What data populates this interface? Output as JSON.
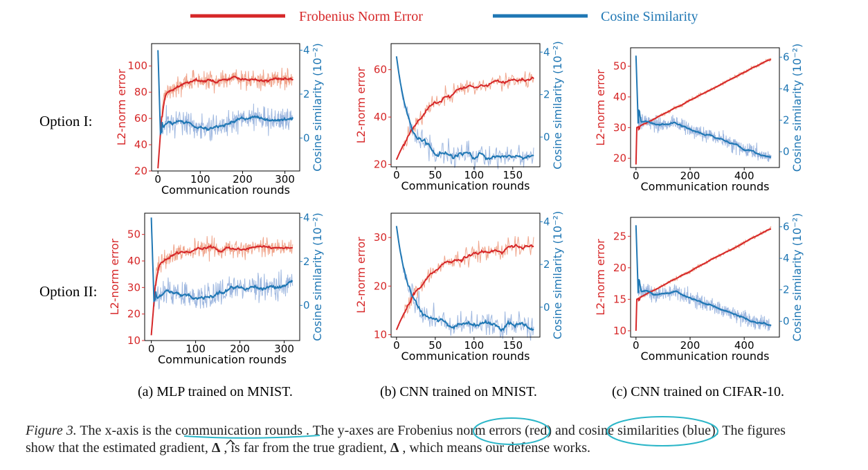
{
  "legend": {
    "frobenius": {
      "label": "Frobenius Norm Error",
      "color": "#d62728"
    },
    "cosine": {
      "label": "Cosine Similarity",
      "color": "#1f77b4"
    }
  },
  "row_labels": [
    "Option I:",
    "Option II:"
  ],
  "subcaptions": [
    "(a) MLP trained on MNIST.",
    "(b) CNN trained on MNIST.",
    "(c) CNN trained on CIFAR-10."
  ],
  "caption": {
    "figure_label": "Figure 3.",
    "part1": "The x-axis is the ",
    "u1": "communication rounds",
    "part2": ". The y-axes are Frobenius ",
    "u2": "norm errors",
    "part3": " (red) and ",
    "u3": "cosine similarities",
    "part4": " (blue). The figures",
    "line2a": "show that the estimated gradient, ",
    "delta_hat": "Δ",
    "line2b": ", is far from the true gradient, ",
    "delta": "Δ",
    "line2c": ", which means our defense works."
  },
  "chart_data": [
    {
      "type": "line",
      "panel": "a",
      "option": "Option I",
      "xlabel": "Communication rounds",
      "ylabel": "L2-norm error",
      "ylabel2": "Cosine similarity (10⁻²)",
      "xlim": [
        -15,
        335
      ],
      "xticks": [
        0,
        100,
        200,
        300
      ],
      "ylim": [
        20,
        117
      ],
      "yticks": [
        20,
        40,
        60,
        80,
        100
      ],
      "y2lim": [
        -1.5,
        4.3
      ],
      "y2ticks": [
        0,
        2,
        4
      ],
      "rounds": 320,
      "l2_trend": {
        "start": 22,
        "jump_end": 75,
        "plateau": 90,
        "t_jump": 12
      },
      "cos_trend": {
        "start": 4.0,
        "min": 0.2,
        "plateau": 0.6,
        "end": 1.1
      }
    },
    {
      "type": "line",
      "panel": "b",
      "option": "Option I",
      "xlabel": "Communication rounds",
      "ylabel": "L2-norm error",
      "ylabel2": "Cosine similarity (10⁻²)",
      "xlim": [
        -7,
        185
      ],
      "xticks": [
        0,
        50,
        100,
        150
      ],
      "ylim": [
        19,
        71
      ],
      "yticks": [
        20,
        40,
        60
      ],
      "y2lim": [
        -1.4,
        4.4
      ],
      "y2ticks": [
        0,
        2,
        4
      ],
      "rounds": 178,
      "l2_trend": {
        "start": 22,
        "plateau": 57
      },
      "cos_trend": {
        "start": 3.8,
        "plateau": -0.8,
        "end": -0.9
      }
    },
    {
      "type": "line",
      "panel": "c",
      "option": "Option I",
      "xlabel": "Communication rounds",
      "ylabel": "L2-norm error",
      "ylabel2": "Cosine similarity (10⁻²)",
      "xlim": [
        -20,
        530
      ],
      "xticks": [
        0,
        200,
        400
      ],
      "ylim": [
        17,
        56
      ],
      "yticks": [
        20,
        30,
        40,
        50
      ],
      "y2lim": [
        -1.0,
        6.6
      ],
      "y2ticks": [
        0,
        2,
        4,
        6
      ],
      "rounds": 500,
      "l2_trend": {
        "start": 18,
        "t0_value": 30,
        "end": 52.5
      },
      "cos_trend": {
        "start": 6.1,
        "plateau": 1.8,
        "end": -0.4
      }
    },
    {
      "type": "line",
      "panel": "a",
      "option": "Option II",
      "xlabel": "Communication rounds",
      "ylabel": "L2-norm error",
      "ylabel2": "Cosine similarity (10⁻²)",
      "xlim": [
        -15,
        335
      ],
      "xticks": [
        0,
        100,
        200,
        300
      ],
      "ylim": [
        10,
        58
      ],
      "yticks": [
        10,
        20,
        30,
        40,
        50
      ],
      "y2lim": [
        -1.6,
        4.2
      ],
      "y2ticks": [
        0,
        2,
        4
      ],
      "rounds": 320,
      "l2_trend": {
        "start": 12,
        "jump_end": 37,
        "plateau": 45,
        "t_jump": 12
      },
      "cos_trend": {
        "start": 4.0,
        "min": 0.2,
        "plateau": 0.5,
        "end": 1.1
      }
    },
    {
      "type": "line",
      "panel": "b",
      "option": "Option II",
      "xlabel": "Communication rounds",
      "ylabel": "L2-norm error",
      "ylabel2": "Cosine similarity (10⁻²)",
      "xlim": [
        -7,
        185
      ],
      "xticks": [
        0,
        50,
        100,
        150
      ],
      "ylim": [
        9.5,
        35
      ],
      "yticks": [
        10,
        20,
        30
      ],
      "y2lim": [
        -1.4,
        4.4
      ],
      "y2ticks": [
        0,
        2,
        4
      ],
      "rounds": 178,
      "l2_trend": {
        "start": 11,
        "plateau": 28.5
      },
      "cos_trend": {
        "start": 3.8,
        "plateau": -0.7,
        "end": -0.9
      }
    },
    {
      "type": "line",
      "panel": "c",
      "option": "Option II",
      "xlabel": "Communication rounds",
      "ylabel": "L2-norm error",
      "ylabel2": "Cosine similarity (10⁻²)",
      "xlim": [
        -20,
        530
      ],
      "xticks": [
        0,
        200,
        400
      ],
      "ylim": [
        9,
        28
      ],
      "yticks": [
        10,
        15,
        20,
        25
      ],
      "y2lim": [
        -1.0,
        6.6
      ],
      "y2ticks": [
        0,
        2,
        4,
        6
      ],
      "rounds": 500,
      "l2_trend": {
        "start": 10,
        "t0_value": 15,
        "end": 26.3
      },
      "cos_trend": {
        "start": 6.1,
        "plateau": 1.8,
        "end": -0.4
      }
    }
  ]
}
